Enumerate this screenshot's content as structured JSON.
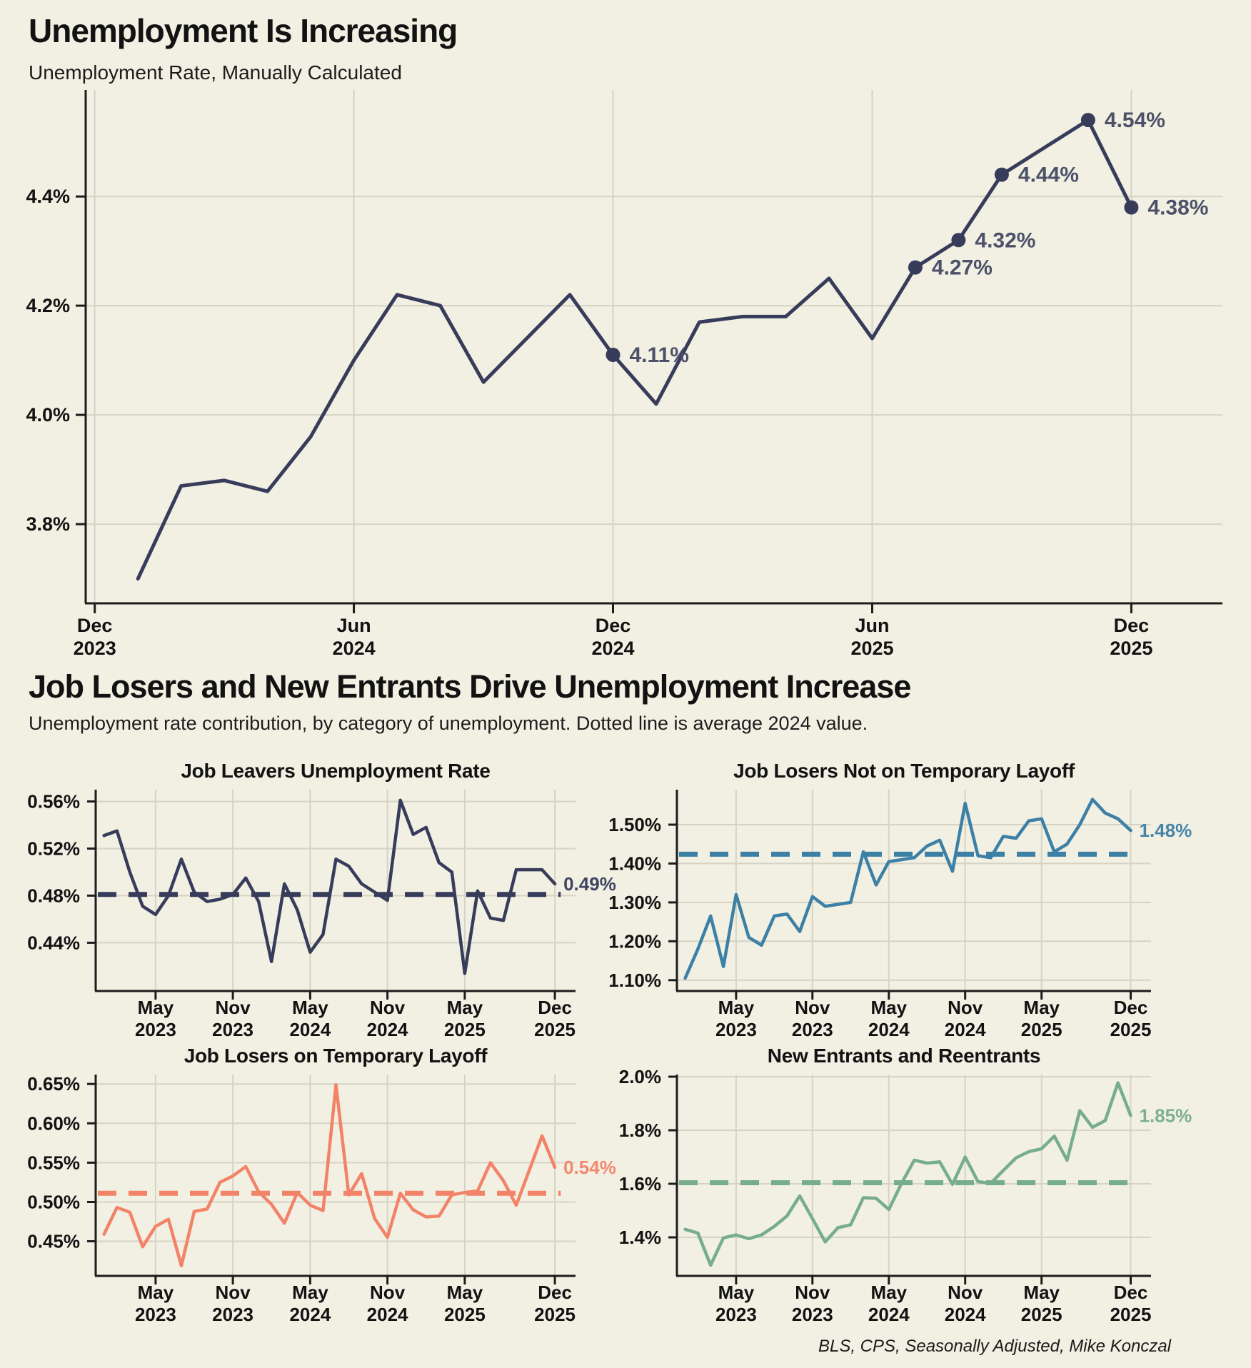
{
  "page": {
    "title": "Unemployment Is Increasing",
    "subtitle": "Unemployment Rate, Manually Calculated",
    "section2_title": "Job Losers and New Entrants Drive Unemployment Increase",
    "section2_subtitle": "Unemployment rate contribution, by category of unemployment. Dotted line is average 2024 value.",
    "footer": "BLS, CPS, Seasonally Adjusted, Mike Konczal",
    "colors": {
      "background": "#f2f0e2",
      "navy": "#373c5b",
      "teal": "#3d80a6",
      "salmon": "#f28368",
      "green": "#76ad8d",
      "grid": "#d6d3c5",
      "axis": "#1c1c1c",
      "point_label": "#4c5169"
    }
  },
  "chart_data": {
    "main": {
      "id": "main-unemployment",
      "type": "line",
      "title": "Unemployment Is Increasing",
      "subtitle": "Unemployment Rate, Manually Calculated",
      "color": "#373c5b",
      "categories": [
        "Jan 2024",
        "Feb 2024",
        "Mar 2024",
        "Apr 2024",
        "May 2024",
        "Jun 2024",
        "Jul 2024",
        "Aug 2024",
        "Sep 2024",
        "Oct 2024",
        "Nov 2024",
        "Dec 2024",
        "Jan 2025",
        "Feb 2025",
        "Mar 2025",
        "Apr 2025",
        "May 2025",
        "Jun 2025",
        "Jul 2025",
        "Aug 2025",
        "Sep 2025",
        "Oct 2025",
        "Nov 2025",
        "Dec 2025"
      ],
      "values": [
        3.7,
        3.87,
        3.88,
        3.86,
        3.96,
        4.1,
        4.22,
        4.2,
        4.06,
        4.14,
        4.22,
        4.11,
        4.02,
        4.17,
        4.18,
        4.18,
        4.25,
        4.14,
        4.27,
        4.32,
        4.44,
        null,
        4.54,
        4.38
      ],
      "ylim": [
        3.655,
        4.595
      ],
      "grid": true,
      "legend": "none",
      "yticks": [
        {
          "v": 4.4,
          "label": "4.4%"
        },
        {
          "v": 4.2,
          "label": "4.2%"
        },
        {
          "v": 4.0,
          "label": "4.0%"
        },
        {
          "v": 3.8,
          "label": "3.8%"
        }
      ],
      "xticks": [
        {
          "i": -1,
          "line1": "Dec",
          "line2": "2023"
        },
        {
          "i": 5,
          "line1": "Jun",
          "line2": "2024"
        },
        {
          "i": 11,
          "line1": "Dec",
          "line2": "2024"
        },
        {
          "i": 17,
          "line1": "Jun",
          "line2": "2025"
        },
        {
          "i": 23,
          "line1": "Dec",
          "line2": "2025"
        }
      ],
      "point_labels": [
        {
          "i": 11,
          "text": "4.11%"
        },
        {
          "i": 18,
          "text": "4.27%"
        },
        {
          "i": 19,
          "text": "4.32%"
        },
        {
          "i": 20,
          "text": "4.44%"
        },
        {
          "i": 22,
          "text": "4.54%"
        },
        {
          "i": 23,
          "text": "4.38%"
        }
      ]
    },
    "small_categories": [
      "Jan 2023",
      "Feb 2023",
      "Mar 2023",
      "Apr 2023",
      "May 2023",
      "Jun 2023",
      "Jul 2023",
      "Aug 2023",
      "Sep 2023",
      "Oct 2023",
      "Nov 2023",
      "Dec 2023",
      "Jan 2024",
      "Feb 2024",
      "Mar 2024",
      "Apr 2024",
      "May 2024",
      "Jun 2024",
      "Jul 2024",
      "Aug 2024",
      "Sep 2024",
      "Oct 2024",
      "Nov 2024",
      "Dec 2024",
      "Jan 2025",
      "Feb 2025",
      "Mar 2025",
      "Apr 2025",
      "May 2025",
      "Jun 2025",
      "Jul 2025",
      "Aug 2025",
      "Sep 2025",
      "Oct 2025",
      "Nov 2025",
      "Dec 2025"
    ],
    "small_xticks": [
      {
        "i": 4,
        "line1": "May",
        "line2": "2023"
      },
      {
        "i": 10,
        "line1": "Nov",
        "line2": "2023"
      },
      {
        "i": 16,
        "line1": "May",
        "line2": "2024"
      },
      {
        "i": 22,
        "line1": "Nov",
        "line2": "2024"
      },
      {
        "i": 28,
        "line1": "May",
        "line2": "2025"
      },
      {
        "i": 35,
        "line1": "Dec",
        "line2": "2025"
      }
    ],
    "small": [
      {
        "id": "job-leavers",
        "type": "line",
        "title": "Job Leavers Unemployment Rate",
        "color": "#373c5b",
        "avg_2024": 0.481,
        "end_label": "0.49%",
        "ylim": [
          0.399,
          0.57
        ],
        "yticks": [
          {
            "v": 0.56,
            "label": "0.56%"
          },
          {
            "v": 0.52,
            "label": "0.52%"
          },
          {
            "v": 0.48,
            "label": "0.48%"
          },
          {
            "v": 0.44,
            "label": "0.44%"
          }
        ],
        "values": [
          0.531,
          0.535,
          0.5,
          0.471,
          0.464,
          0.48,
          0.511,
          0.483,
          0.475,
          0.477,
          0.481,
          0.495,
          0.475,
          0.424,
          0.49,
          0.468,
          0.432,
          0.447,
          0.511,
          0.505,
          0.49,
          0.483,
          0.476,
          0.561,
          0.532,
          0.538,
          0.508,
          0.5,
          0.414,
          0.484,
          0.461,
          0.459,
          0.502,
          0.502,
          0.502,
          0.49
        ]
      },
      {
        "id": "job-losers-not-temp",
        "type": "line",
        "title": "Job Losers Not on Temporary Layoff",
        "color": "#3d80a6",
        "avg_2024": 1.424,
        "end_label": "1.48%",
        "ylim": [
          1.072,
          1.59
        ],
        "yticks": [
          {
            "v": 1.5,
            "label": "1.50%"
          },
          {
            "v": 1.4,
            "label": "1.40%"
          },
          {
            "v": 1.3,
            "label": "1.30%"
          },
          {
            "v": 1.2,
            "label": "1.20%"
          },
          {
            "v": 1.1,
            "label": "1.10%"
          }
        ],
        "values": [
          1.105,
          1.18,
          1.265,
          1.135,
          1.32,
          1.21,
          1.19,
          1.265,
          1.27,
          1.225,
          1.315,
          1.29,
          1.295,
          1.3,
          1.43,
          1.345,
          1.405,
          1.41,
          1.415,
          1.445,
          1.46,
          1.38,
          1.555,
          1.42,
          1.415,
          1.47,
          1.465,
          1.51,
          1.515,
          1.43,
          1.45,
          1.5,
          1.565,
          1.53,
          1.515,
          1.485
        ]
      },
      {
        "id": "job-losers-temp-layoff",
        "type": "line",
        "title": "Job Losers on Temporary Layoff",
        "color": "#f28368",
        "avg_2024": 0.511,
        "end_label": "0.54%",
        "ylim": [
          0.406,
          0.662
        ],
        "yticks": [
          {
            "v": 0.65,
            "label": "0.65%"
          },
          {
            "v": 0.6,
            "label": "0.60%"
          },
          {
            "v": 0.55,
            "label": "0.55%"
          },
          {
            "v": 0.5,
            "label": "0.50%"
          },
          {
            "v": 0.45,
            "label": "0.45%"
          }
        ],
        "values": [
          0.459,
          0.493,
          0.487,
          0.443,
          0.469,
          0.478,
          0.419,
          0.488,
          0.491,
          0.525,
          0.533,
          0.545,
          0.513,
          0.497,
          0.473,
          0.512,
          0.496,
          0.489,
          0.649,
          0.509,
          0.536,
          0.479,
          0.455,
          0.511,
          0.49,
          0.481,
          0.482,
          0.509,
          0.512,
          0.514,
          0.55,
          0.527,
          0.496,
          0.54,
          0.584,
          0.544
        ]
      },
      {
        "id": "new-entrants-reentrants",
        "type": "line",
        "title": "New Entrants and Reentrants",
        "color": "#76ad8d",
        "avg_2024": 1.604,
        "end_label": "1.85%",
        "ylim": [
          1.256,
          2.008
        ],
        "yticks": [
          {
            "v": 2.0,
            "label": "2.0%"
          },
          {
            "v": 1.8,
            "label": "1.8%"
          },
          {
            "v": 1.6,
            "label": "1.6%"
          },
          {
            "v": 1.4,
            "label": "1.4%"
          }
        ],
        "values": [
          1.43,
          1.416,
          1.296,
          1.398,
          1.409,
          1.395,
          1.409,
          1.441,
          1.48,
          1.555,
          1.47,
          1.383,
          1.436,
          1.447,
          1.548,
          1.546,
          1.504,
          1.602,
          1.688,
          1.677,
          1.682,
          1.598,
          1.7,
          1.608,
          1.602,
          1.65,
          1.697,
          1.72,
          1.731,
          1.778,
          1.688,
          1.873,
          1.811,
          1.836,
          1.977,
          1.855
        ]
      }
    ]
  }
}
